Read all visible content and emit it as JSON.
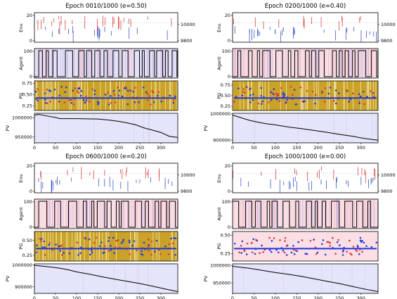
{
  "chart_data": [
    {
      "type": "line",
      "title": "Epoch 0010/1000 (e=0.50)",
      "xlim": [
        0,
        340
      ],
      "x_ticks": [
        "0",
        "50",
        "100",
        "150",
        "200",
        "250",
        "300"
      ],
      "agent_background": "buy",
      "pg_shading": true,
      "panels": {
        "env": {
          "ylabel": "Env.",
          "ylim": [
            0,
            20
          ],
          "yticks": [
            "0",
            "20"
          ],
          "right_yticks": [
            "10000",
            "9800"
          ]
        },
        "agent": {
          "ylabel": "Agent",
          "ylim": [
            0,
            100
          ],
          "yticks": [
            "0",
            "100"
          ]
        },
        "pg": {
          "ylabel": "PG",
          "ylim": [
            0.15,
            0.8
          ],
          "yticks": [
            "0.25",
            "0.50",
            "0.75"
          ]
        },
        "pv": {
          "ylabel": "PV",
          "ylim": [
            935000,
            1012000
          ],
          "yticks": [
            "950000",
            "1000000"
          ],
          "x": [
            0,
            10,
            30,
            50,
            60,
            100,
            150,
            180,
            200,
            220,
            240,
            260,
            280,
            300,
            320,
            340
          ],
          "y": [
            1007000,
            1009000,
            1005000,
            1001000,
            998000,
            998000,
            997000,
            994000,
            991000,
            987000,
            982000,
            974000,
            968000,
            962000,
            952000,
            949000
          ]
        }
      }
    },
    {
      "type": "line",
      "title": "Epoch 0200/1000 (e=0.40)",
      "xlim": [
        0,
        340
      ],
      "x_ticks": [
        "0",
        "50",
        "100",
        "150",
        "200",
        "250",
        "300"
      ],
      "agent_background": "sell",
      "pg_shading": true,
      "panels": {
        "env": {
          "ylabel": "Env.",
          "ylim": [
            0,
            20
          ],
          "yticks": [
            "0",
            "20"
          ],
          "right_yticks": [
            "10000",
            "9800"
          ]
        },
        "agent": {
          "ylabel": "Agent",
          "ylim": [
            0,
            100
          ],
          "yticks": [
            "0",
            "100"
          ]
        },
        "pg": {
          "ylabel": "PG",
          "ylim": [
            0.15,
            0.85
          ],
          "yticks": [
            "0.25",
            "0.50",
            "0.75"
          ]
        },
        "pv": {
          "ylabel": "PV",
          "ylim": [
            890000,
            1002000
          ],
          "yticks": [
            "900000",
            "1000000"
          ],
          "x": [
            0,
            20,
            40,
            60,
            80,
            100,
            130,
            160,
            190,
            220,
            250,
            280,
            310,
            340
          ],
          "y": [
            995000,
            985000,
            975000,
            968000,
            962000,
            958000,
            950000,
            944000,
            937000,
            930000,
            922000,
            915000,
            906000,
            900000
          ]
        }
      }
    },
    {
      "type": "line",
      "title": "Epoch 0600/1000 (e=0.20)",
      "xlim": [
        0,
        340
      ],
      "x_ticks": [
        "0",
        "50",
        "100",
        "150",
        "200",
        "250",
        "300"
      ],
      "agent_background": "sell",
      "pg_shading": true,
      "panels": {
        "env": {
          "ylabel": "Env.",
          "ylim": [
            0,
            20
          ],
          "yticks": [
            "0",
            "20"
          ],
          "right_yticks": [
            "10000",
            "9800"
          ]
        },
        "agent": {
          "ylabel": "Agent",
          "ylim": [
            0,
            100
          ],
          "yticks": [
            "0",
            "100"
          ]
        },
        "pg": {
          "ylabel": "PG",
          "ylim": [
            0.15,
            0.65
          ],
          "yticks": [
            "0.25",
            "0.50"
          ]
        },
        "pv": {
          "ylabel": "PV",
          "ylim": [
            870000,
            1005000
          ],
          "yticks": [
            "900000",
            "1000000"
          ],
          "x": [
            0,
            20,
            40,
            60,
            80,
            100,
            130,
            160,
            190,
            220,
            250,
            280,
            310,
            340
          ],
          "y": [
            998000,
            994000,
            990000,
            985000,
            978000,
            968000,
            958000,
            946000,
            935000,
            925000,
            915000,
            903000,
            890000,
            878000
          ]
        }
      }
    },
    {
      "type": "line",
      "title": "Epoch 1000/1000 (e=0.00)",
      "xlim": [
        0,
        340
      ],
      "x_ticks": [
        "0",
        "50",
        "100",
        "150",
        "200",
        "250",
        "300"
      ],
      "agent_background": "sell",
      "pg_shading": false,
      "panels": {
        "env": {
          "ylabel": "Env.",
          "ylim": [
            0,
            20
          ],
          "yticks": [
            "0",
            "20"
          ],
          "right_yticks": [
            "10000",
            "9800"
          ]
        },
        "agent": {
          "ylabel": "Agent",
          "ylim": [
            0,
            100
          ],
          "yticks": [
            "0",
            "100"
          ]
        },
        "pg": {
          "ylabel": "PG",
          "ylim": [
            0.15,
            0.55
          ],
          "yticks": [
            "0.25",
            "0.50"
          ]
        },
        "pv": {
          "ylabel": "PV",
          "ylim": [
            920000,
            1005000
          ],
          "yticks": [
            "950000",
            "1000000"
          ],
          "x": [
            0,
            20,
            40,
            60,
            80,
            100,
            130,
            160,
            190,
            220,
            250,
            280,
            310,
            340
          ],
          "y": [
            998000,
            995000,
            992000,
            988000,
            984000,
            980000,
            975000,
            969000,
            962000,
            955000,
            948000,
            940000,
            932000,
            925000
          ]
        }
      }
    }
  ]
}
